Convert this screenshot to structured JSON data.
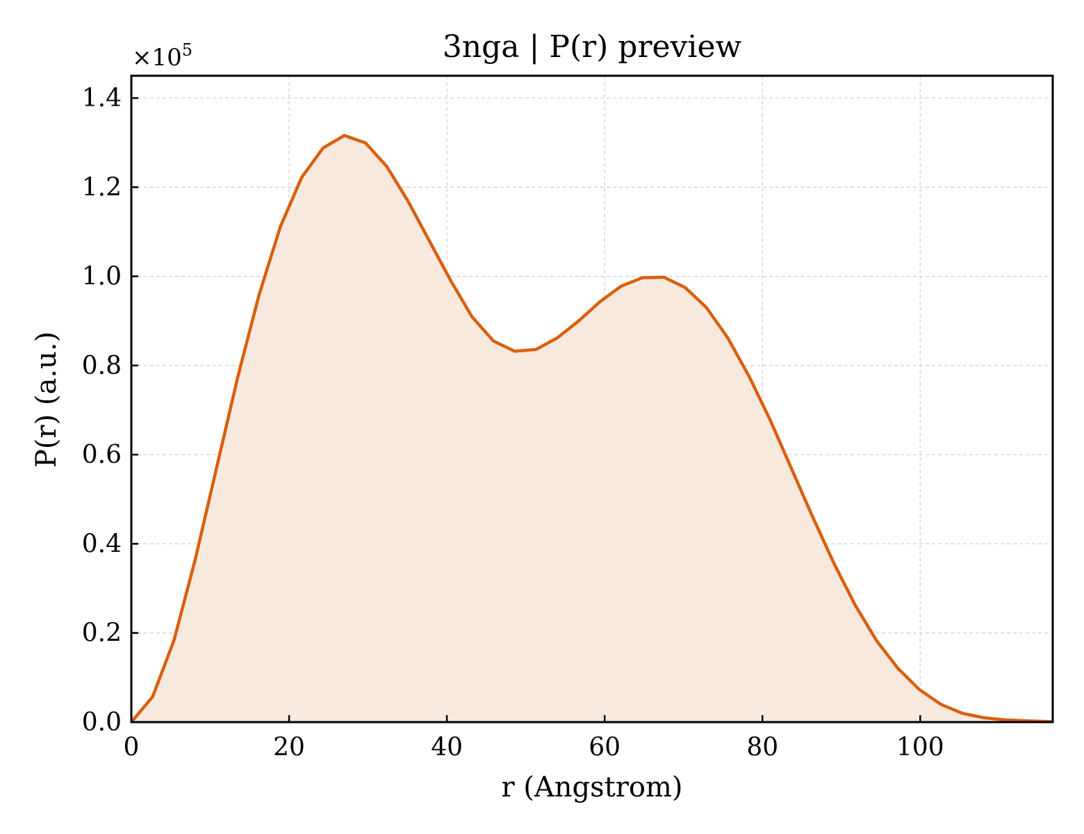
{
  "colors": {
    "line": "#d95f0e",
    "fill": "#f8e9de",
    "grid": "#cccccc",
    "axis": "#000000",
    "background": "#ffffff"
  },
  "chart_data": {
    "type": "area",
    "title": "3nga | P(r) preview",
    "xlabel": "r (Angstrom)",
    "ylabel": "P(r) (a.u.)",
    "y_multiplier_label": "×10",
    "y_multiplier_exponent": "5",
    "xlim": [
      0,
      116.8
    ],
    "ylim": [
      0,
      1.45
    ],
    "xticks": [
      0,
      20,
      40,
      60,
      80,
      100
    ],
    "yticks": [
      0.0,
      0.2,
      0.4,
      0.6,
      0.8,
      1.0,
      1.2,
      1.4
    ],
    "xtick_labels": [
      "0",
      "20",
      "40",
      "60",
      "80",
      "100"
    ],
    "ytick_labels": [
      "0.0",
      "0.2",
      "0.4",
      "0.6",
      "0.8",
      "1.0",
      "1.2",
      "1.4"
    ],
    "grid": true,
    "series": [
      {
        "x": [
          0.0,
          2.7,
          5.4,
          8.1,
          10.8,
          13.5,
          16.2,
          18.9,
          21.6,
          24.3,
          27.0,
          29.7,
          32.4,
          35.1,
          37.8,
          40.5,
          43.2,
          45.9,
          48.6,
          51.3,
          54.0,
          56.7,
          59.4,
          62.1,
          64.8,
          67.5,
          70.2,
          72.9,
          75.6,
          78.3,
          81.0,
          83.7,
          86.4,
          89.1,
          91.8,
          94.5,
          97.2,
          99.9,
          102.6,
          105.3,
          108.0,
          110.7,
          113.4,
          116.8
        ],
        "y": [
          0.0,
          0.057,
          0.183,
          0.365,
          0.57,
          0.775,
          0.959,
          1.112,
          1.222,
          1.288,
          1.316,
          1.299,
          1.246,
          1.168,
          1.079,
          0.99,
          0.909,
          0.855,
          0.832,
          0.836,
          0.862,
          0.9,
          0.943,
          0.978,
          0.997,
          0.998,
          0.975,
          0.93,
          0.862,
          0.776,
          0.677,
          0.568,
          0.459,
          0.355,
          0.261,
          0.182,
          0.12,
          0.073,
          0.04,
          0.02,
          0.01,
          0.005,
          0.003,
          0.001
        ]
      }
    ]
  }
}
